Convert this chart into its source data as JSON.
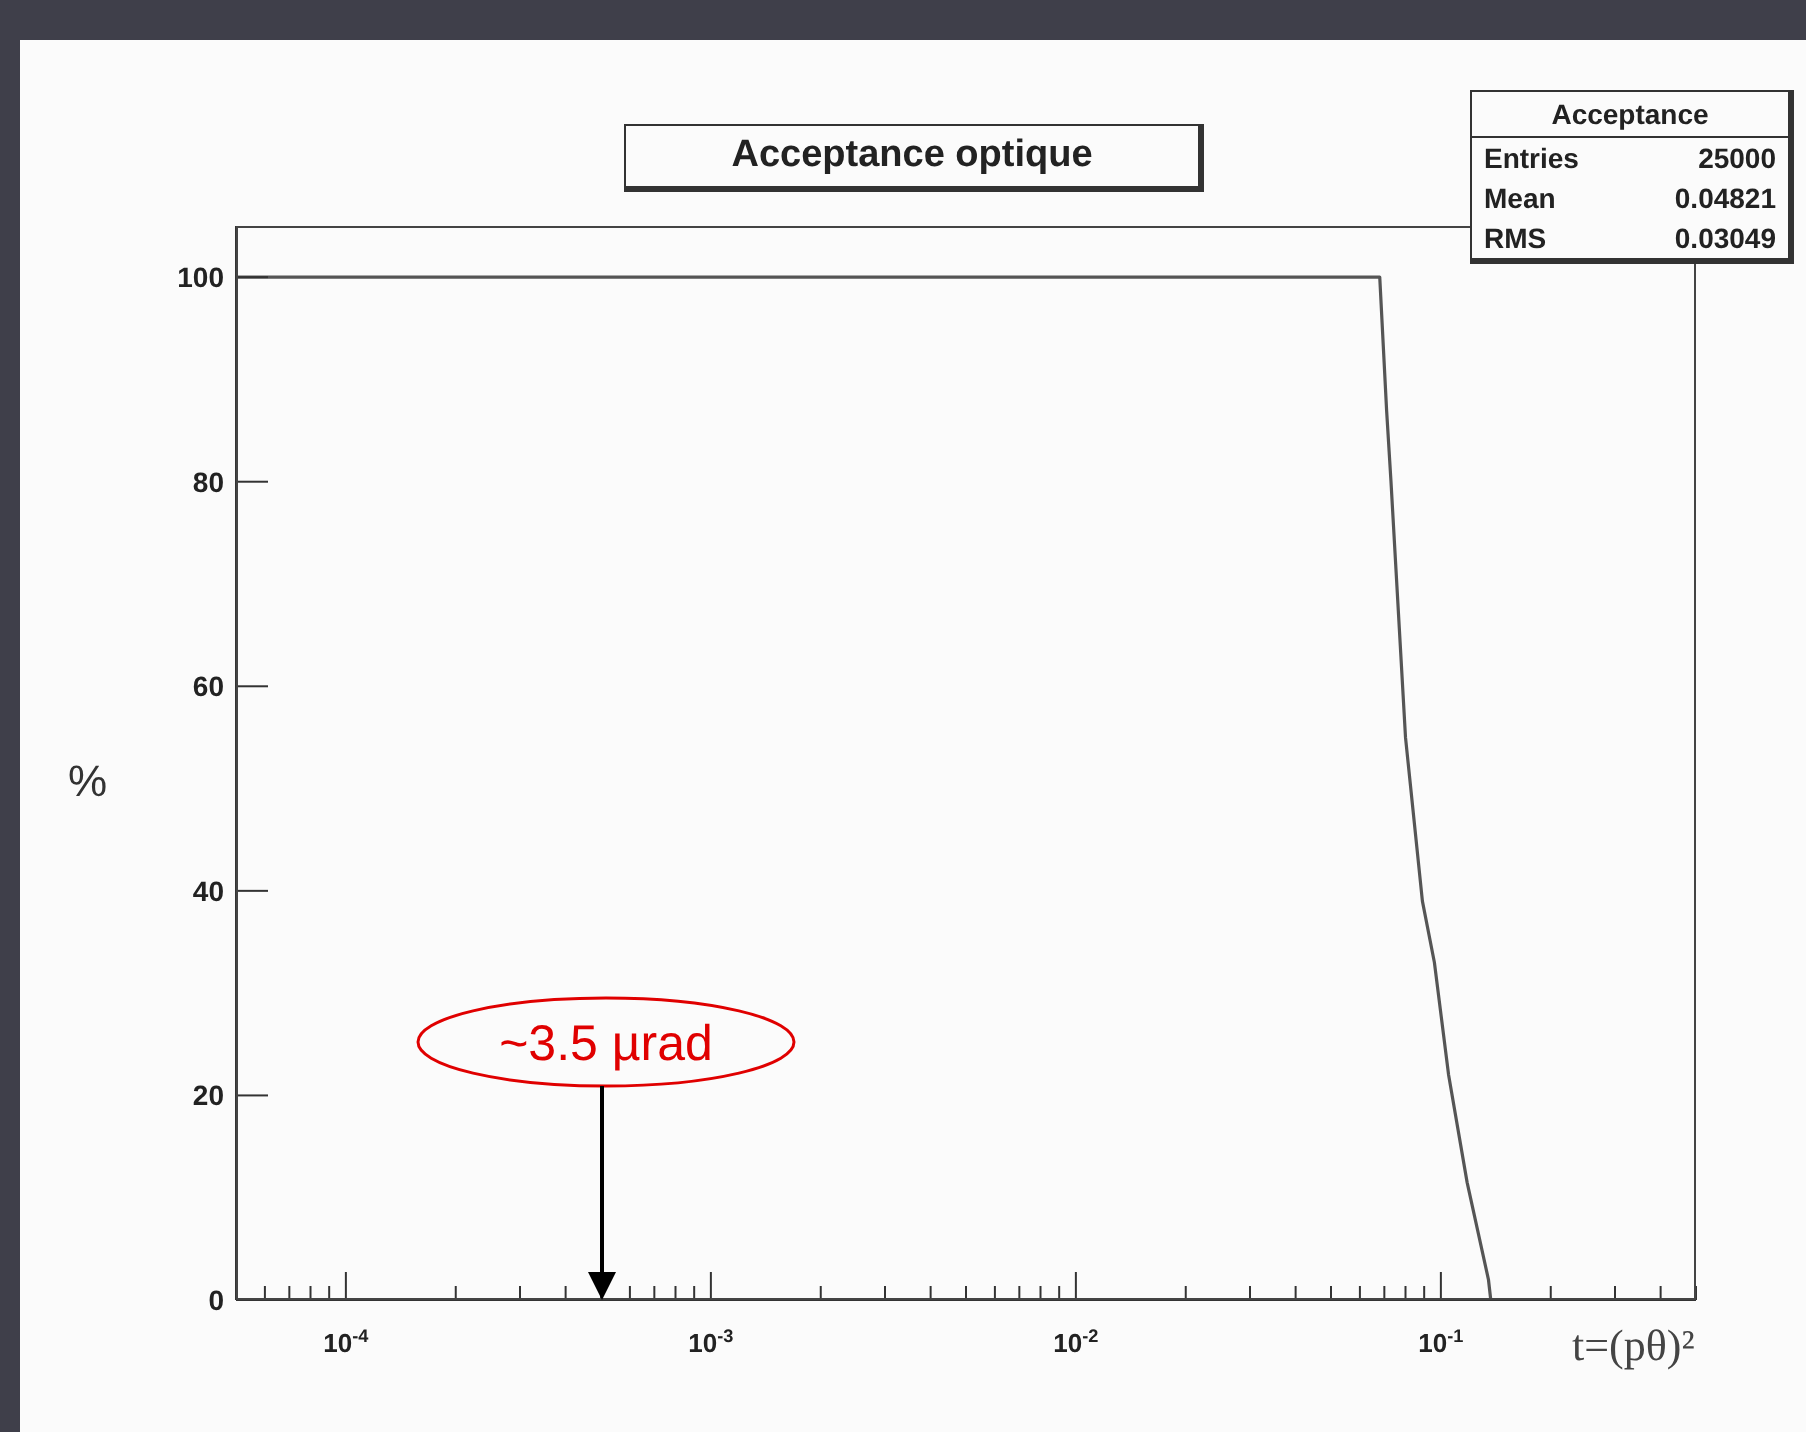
{
  "chart_data": {
    "type": "line",
    "title": "Acceptance optique",
    "xlabel": "t=(pθ)²",
    "ylabel": "%",
    "log": "x",
    "xlim": [
      5e-05,
      0.5
    ],
    "xticks": [
      {
        "value": 5e-05,
        "label": null
      },
      {
        "value": 6e-05,
        "label": null
      },
      {
        "value": 7e-05,
        "label": null
      },
      {
        "value": 8e-05,
        "label": null
      },
      {
        "value": 9e-05,
        "label": null
      },
      {
        "value": 0.0001,
        "label": "10$^{-4}$"
      },
      {
        "value": 0.0002,
        "label": null
      },
      {
        "value": 0.0003,
        "label": null
      },
      {
        "value": 0.0004,
        "label": null
      },
      {
        "value": 0.0005,
        "label": null
      },
      {
        "value": 0.0006,
        "label": null
      },
      {
        "value": 0.0007,
        "label": null
      },
      {
        "value": 0.0008,
        "label": null
      },
      {
        "value": 0.0009,
        "label": null
      },
      {
        "value": 0.001,
        "label": "10$^{-3}$"
      },
      {
        "value": 0.002,
        "label": null
      },
      {
        "value": 0.003,
        "label": null
      },
      {
        "value": 0.004,
        "label": null
      },
      {
        "value": 0.005,
        "label": null
      },
      {
        "value": 0.006,
        "label": null
      },
      {
        "value": 0.007,
        "label": null
      },
      {
        "value": 0.008,
        "label": null
      },
      {
        "value": 0.009,
        "label": null
      },
      {
        "value": 0.01,
        "label": "10$^{-2}$"
      },
      {
        "value": 0.02,
        "label": null
      },
      {
        "value": 0.03,
        "label": null
      },
      {
        "value": 0.04,
        "label": null
      },
      {
        "value": 0.05,
        "label": null
      },
      {
        "value": 0.06,
        "label": null
      },
      {
        "value": 0.07,
        "label": null
      },
      {
        "value": 0.08,
        "label": null
      },
      {
        "value": 0.09,
        "label": null
      },
      {
        "value": 0.1,
        "label": "10$^{-1}$"
      },
      {
        "value": 0.2,
        "label": null
      },
      {
        "value": 0.3,
        "label": null
      },
      {
        "value": 0.4,
        "label": null
      },
      {
        "value": 0.5,
        "label": null
      }
    ],
    "ylim": [
      0,
      105
    ],
    "yticks": [
      0,
      20,
      40,
      60,
      80,
      100
    ],
    "grid": false,
    "legend": false,
    "marker": "none",
    "line_style": "solid",
    "series": [
      {
        "color": "#555555",
        "x": [
          5e-05,
          0.068,
          0.071,
          0.073,
          0.08,
          0.089,
          0.096,
          0.105,
          0.118,
          0.135,
          0.137
        ],
        "values": [
          100,
          100,
          87,
          80,
          55,
          39,
          33,
          22,
          11.5,
          2,
          0
        ]
      }
    ],
    "annotations": [
      "~3.5 µrad",
      "Acceptance",
      "Entries",
      "25000",
      "Mean",
      "0.04821",
      "RMS",
      "0.03049"
    ]
  }
}
